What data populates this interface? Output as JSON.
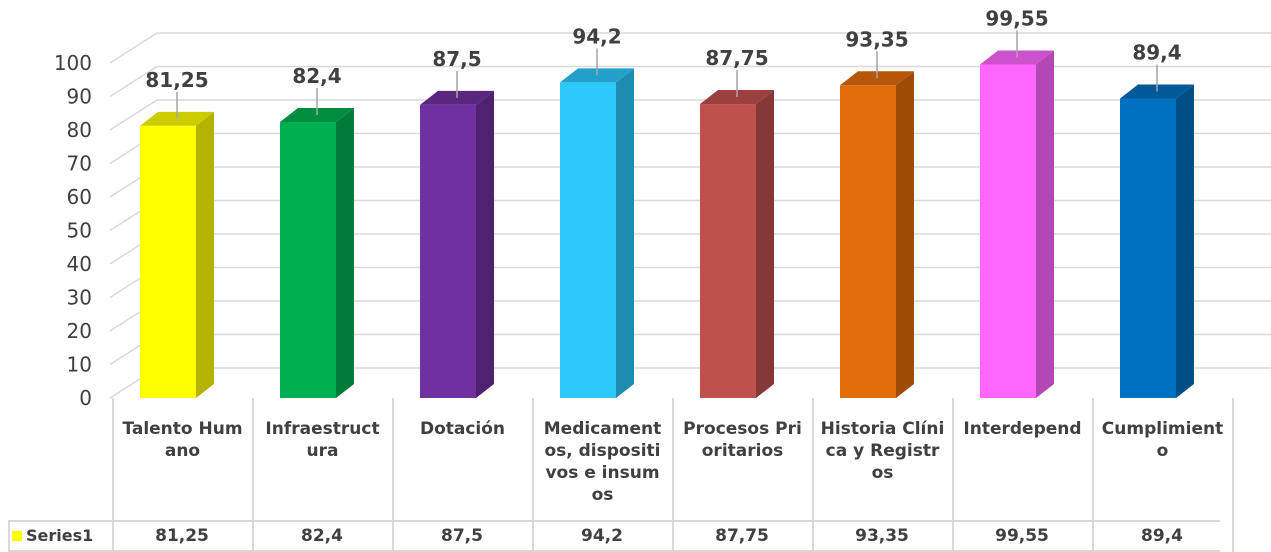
{
  "chart_data": {
    "type": "bar",
    "style": "3d-column",
    "categories": [
      "Talento Humano",
      "Infraestructura",
      "Dotación",
      "Medicamentos, dispositivos e insumos",
      "Procesos Prioritarios",
      "Historia Clínica y Registros",
      "Interdepend",
      "Cumplimiento"
    ],
    "series": [
      {
        "name": "Series1",
        "values": [
          81.25,
          82.4,
          87.5,
          94.2,
          87.75,
          93.35,
          99.55,
          89.4
        ]
      }
    ],
    "value_labels": [
      "81,25",
      "82,4",
      "87,5",
      "94,2",
      "87,75",
      "93,35",
      "99,55",
      "89,4"
    ],
    "ylim": [
      0,
      100
    ],
    "yticks": [
      "0",
      "10",
      "20",
      "30",
      "40",
      "50",
      "60",
      "70",
      "80",
      "90",
      "100"
    ],
    "grid": true,
    "data_table": true,
    "colors": [
      "#ffff00",
      "#00b050",
      "#7030a0",
      "#2bc8fb",
      "#c0504d",
      "#e26b0a",
      "#ff66ff",
      "#0070c0"
    ]
  }
}
